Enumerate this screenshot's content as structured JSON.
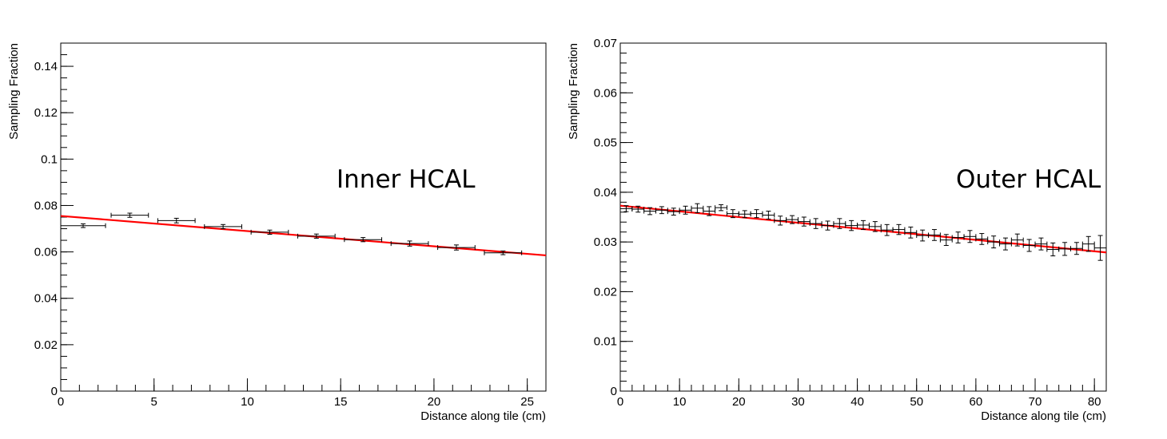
{
  "chart_data": [
    {
      "type": "scatter",
      "annotation": "Inner HCAL",
      "xlabel": "Distance along tile (cm)",
      "ylabel": "Sampling Fraction",
      "xlim": [
        0,
        26
      ],
      "ylim": [
        0,
        0.15
      ],
      "xticks": [
        "0",
        "5",
        "10",
        "15",
        "20",
        "25"
      ],
      "yticks": [
        "0",
        "0.02",
        "0.04",
        "0.06",
        "0.08",
        "0.1",
        "0.12",
        "0.14"
      ],
      "xtick_values": [
        0,
        5,
        10,
        15,
        20,
        25
      ],
      "ytick_values": [
        0,
        0.02,
        0.04,
        0.06,
        0.08,
        0.1,
        0.12,
        0.14
      ],
      "x_minor_step": 1,
      "y_minor_step": 0.005,
      "series": [
        {
          "x": [
            1.2,
            3.7,
            6.2,
            8.7,
            11.2,
            13.7,
            16.2,
            18.7,
            21.2,
            23.7
          ],
          "xerr": [
            1.2,
            1.0,
            1.0,
            1.0,
            1.0,
            1.0,
            1.0,
            1.0,
            1.0,
            1.0
          ],
          "y": [
            0.0713,
            0.0758,
            0.0735,
            0.0709,
            0.0685,
            0.0668,
            0.0653,
            0.0636,
            0.0619,
            0.0596
          ],
          "yerr": [
            0.0008,
            0.0009,
            0.001,
            0.0009,
            0.0009,
            0.0009,
            0.0009,
            0.0011,
            0.0011,
            0.0008
          ]
        }
      ],
      "fit": {
        "x": [
          0,
          26
        ],
        "y": [
          0.0755,
          0.0585
        ]
      }
    },
    {
      "type": "scatter",
      "annotation": "Outer HCAL",
      "xlabel": "Distance along tile (cm)",
      "ylabel": "Sampling Fraction",
      "xlim": [
        0,
        82
      ],
      "ylim": [
        0,
        0.07
      ],
      "xticks": [
        "0",
        "10",
        "20",
        "30",
        "40",
        "50",
        "60",
        "70",
        "80"
      ],
      "yticks": [
        "0",
        "0.01",
        "0.02",
        "0.03",
        "0.04",
        "0.05",
        "0.06",
        "0.07"
      ],
      "xtick_values": [
        0,
        10,
        20,
        30,
        40,
        50,
        60,
        70,
        80
      ],
      "ytick_values": [
        0,
        0.01,
        0.02,
        0.03,
        0.04,
        0.05,
        0.06,
        0.07
      ],
      "x_minor_step": 2,
      "y_minor_step": 0.002,
      "series": [
        {
          "x": [
            1,
            3,
            5,
            7,
            9,
            11,
            13,
            15,
            17,
            19,
            21,
            23,
            25,
            27,
            29,
            31,
            33,
            35,
            37,
            39,
            41,
            43,
            45,
            47,
            49,
            51,
            53,
            55,
            57,
            59,
            61,
            63,
            65,
            67,
            69,
            71,
            73,
            75,
            77,
            79,
            81
          ],
          "xerr": [
            1,
            1,
            1,
            1,
            1,
            1,
            1,
            1,
            1,
            1,
            1,
            1,
            1,
            1,
            1,
            1,
            1,
            1,
            1,
            1,
            1,
            1,
            1,
            1,
            1,
            1,
            1,
            1,
            1,
            1,
            1,
            1,
            1,
            1,
            1,
            1,
            1,
            1,
            1,
            1,
            1
          ],
          "y": [
            0.0367,
            0.0366,
            0.0362,
            0.0364,
            0.0361,
            0.0364,
            0.0368,
            0.0362,
            0.0369,
            0.0357,
            0.0356,
            0.0357,
            0.0354,
            0.0343,
            0.0345,
            0.0341,
            0.0337,
            0.0333,
            0.0337,
            0.0333,
            0.0334,
            0.0331,
            0.0324,
            0.0325,
            0.0319,
            0.0313,
            0.0314,
            0.0304,
            0.0309,
            0.0311,
            0.0306,
            0.03,
            0.0296,
            0.0304,
            0.0293,
            0.0296,
            0.0285,
            0.0286,
            0.0287,
            0.0296,
            0.0288
          ],
          "yerr": [
            0.0006,
            0.0006,
            0.0007,
            0.0007,
            0.0007,
            0.0008,
            0.0009,
            0.0009,
            0.0006,
            0.0008,
            0.0007,
            0.0008,
            0.0008,
            0.0009,
            0.0008,
            0.0009,
            0.001,
            0.0009,
            0.001,
            0.001,
            0.0009,
            0.001,
            0.0011,
            0.001,
            0.0011,
            0.0011,
            0.0011,
            0.0011,
            0.0011,
            0.0012,
            0.0011,
            0.0012,
            0.0012,
            0.0012,
            0.0012,
            0.0012,
            0.0013,
            0.0013,
            0.0012,
            0.0015,
            0.0025
          ]
        }
      ],
      "fit": {
        "x": [
          0,
          82
        ],
        "y": [
          0.0373,
          0.0279
        ]
      }
    }
  ]
}
